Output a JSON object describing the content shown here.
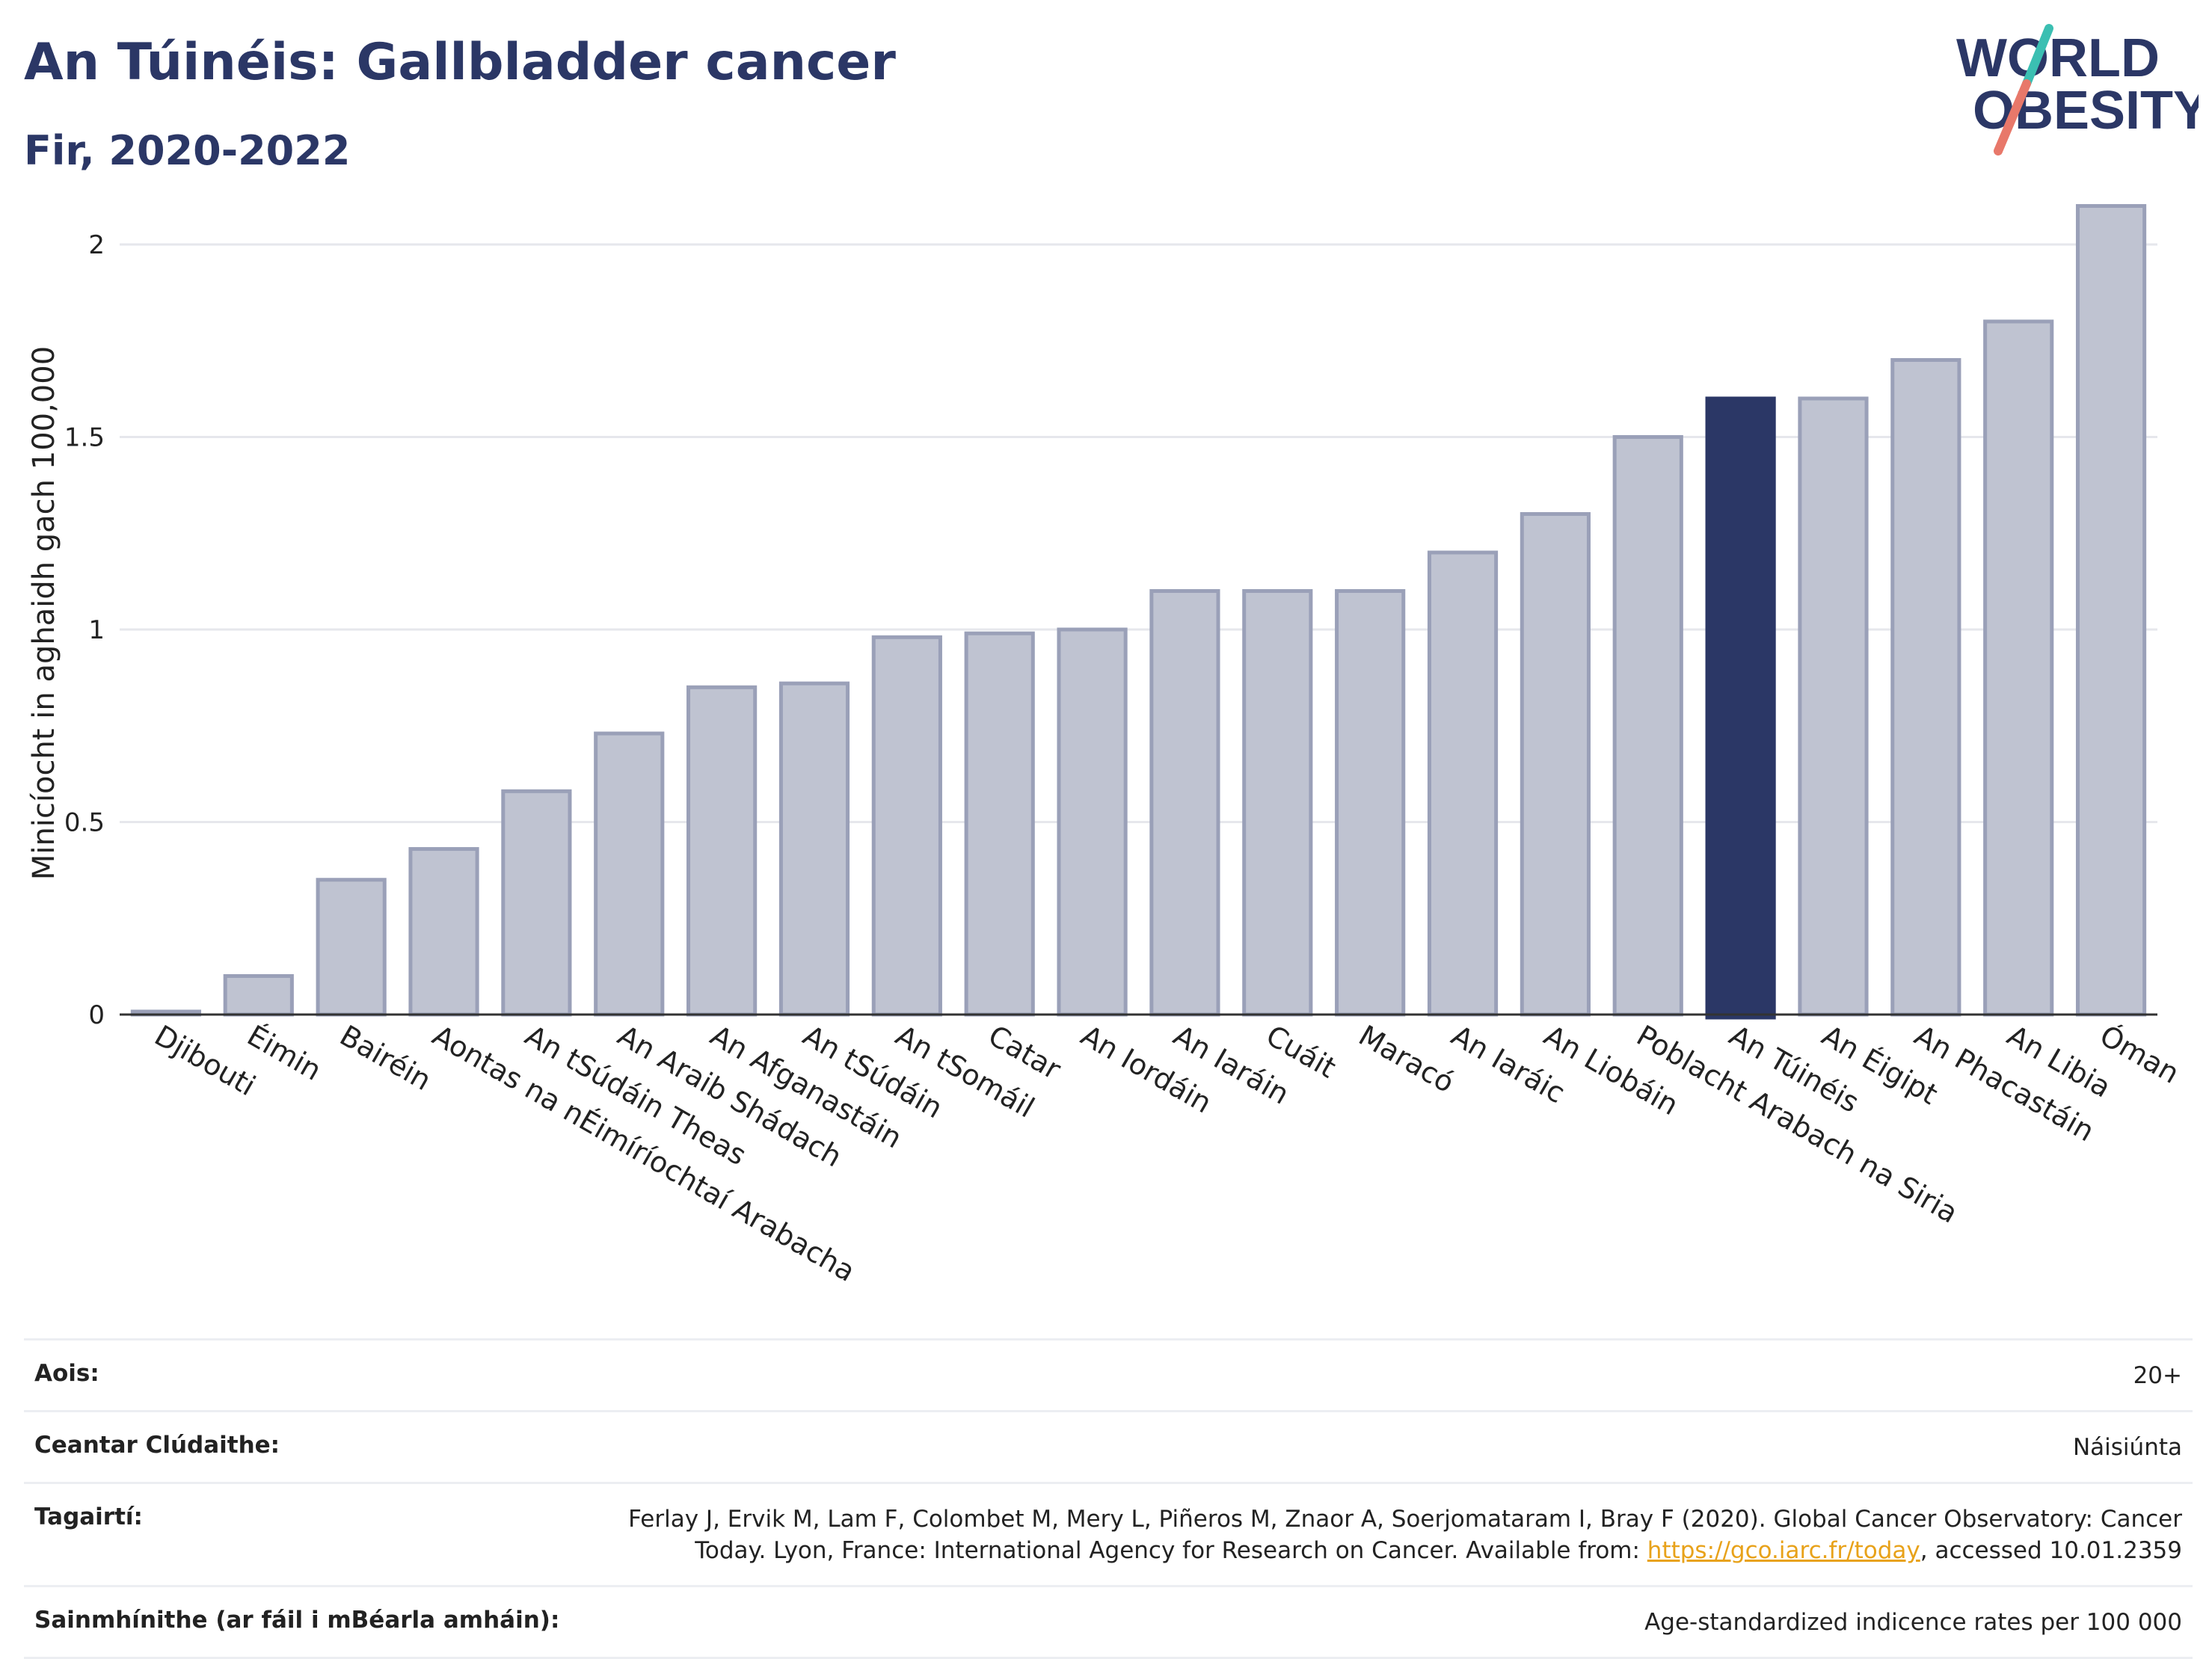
{
  "header": {
    "title": "An Túinéis: Gallbladder cancer",
    "subtitle": "Fir, 2020-2022",
    "logo_top": "WORLD",
    "logo_bottom": "OBESITY"
  },
  "colors": {
    "bar": "#bfc3d1",
    "bar_border": "#9aa0b8",
    "highlight": "#2b3766",
    "title": "#2b3766",
    "logo_teal": "#3bbfb2",
    "logo_coral": "#e8786a"
  },
  "chart_data": {
    "type": "bar",
    "title": "An Túinéis: Gallbladder cancer",
    "subtitle": "Fir, 2020-2022",
    "ylabel": "Minicíocht in aghaidh gach 100,000",
    "xlabel": "",
    "ylim": [
      0,
      2.1
    ],
    "yticks": [
      0,
      0.5,
      1,
      1.5,
      2
    ],
    "ytick_labels": [
      "0",
      "0.5",
      "1",
      "1.5",
      "2"
    ],
    "grid": true,
    "legend": "none",
    "highlight_category": "An Túinéis",
    "categories": [
      "Djibouti",
      "Éimin",
      "Bairéin",
      "Aontas na nÉimíríochtaí Arabacha",
      "An tSúdáin Theas",
      "An Araib Shádach",
      "An Afganastáin",
      "An tSúdáin",
      "An tSomáil",
      "Catar",
      "An Iordáin",
      "An Iaráin",
      "Cuáit",
      "Maracó",
      "An Iaráic",
      "An Liobáin",
      "Poblacht Arabach na Siria",
      "An Túinéis",
      "An Éigipt",
      "An Phacastáin",
      "An Libia",
      "Óman"
    ],
    "values": [
      0.0,
      0.1,
      0.35,
      0.43,
      0.58,
      0.73,
      0.85,
      0.86,
      0.98,
      0.99,
      1.0,
      1.1,
      1.1,
      1.1,
      1.2,
      1.3,
      1.5,
      1.6,
      1.6,
      1.7,
      1.8,
      2.1
    ]
  },
  "info": [
    {
      "key": "Aois:",
      "value": "20+"
    },
    {
      "key": "Ceantar Clúdaithe:",
      "value": "Náisiúnta"
    },
    {
      "key": "Tagairtí:",
      "value_pre": "Ferlay J, Ervik M, Lam F, Colombet M, Mery L, Piñeros M, Znaor A, Soerjomataram I, Bray F (2020). Global Cancer Observatory: Cancer Today. Lyon, France: International Agency for Research on Cancer. Available from: ",
      "link": "https://gco.iarc.fr/today",
      "value_post": ", accessed 10.01.2359"
    },
    {
      "key": "Sainmhínithe (ar fáil i mBéarla amháin):",
      "value": "Age-standardized indicence rates per 100 000"
    }
  ]
}
